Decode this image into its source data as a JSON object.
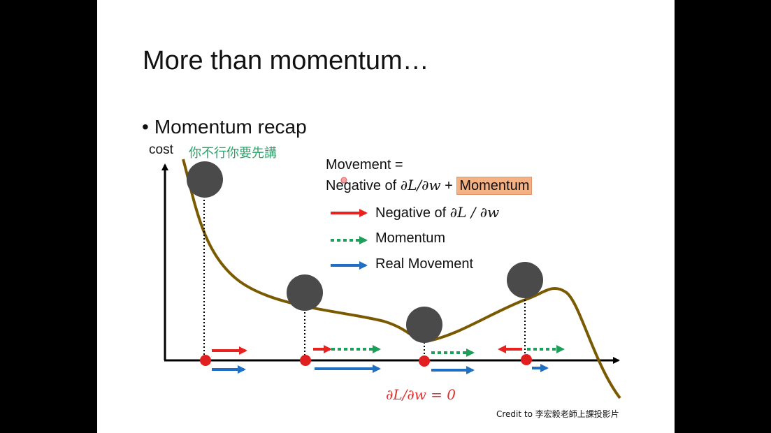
{
  "slide": {
    "title": "More than momentum…",
    "bullet": "Momentum recap",
    "y_axis_label": "cost",
    "subtitle_cn": "你不行你要先講",
    "movement_line1": "Movement =",
    "movement_line2_prefix": "Negative of ",
    "movement_line2_math": "∂L/∂w",
    "movement_line2_plus": " + ",
    "movement_line2_highlight": "Momentum",
    "legend": [
      {
        "label_prefix": "Negative of ",
        "label_math": "∂L / ∂w",
        "color": "#e8231f",
        "style": "solid"
      },
      {
        "label_prefix": "Momentum",
        "label_math": "",
        "color": "#1f9e5a",
        "style": "dotted"
      },
      {
        "label_prefix": "Real Movement",
        "label_math": "",
        "color": "#1f6fc4",
        "style": "solid"
      }
    ],
    "zero_gradient_label": "∂L/∂w = 0",
    "credit": "Credit to 李宏毅老師上課投影片"
  },
  "colors": {
    "curve": "#7a5a00",
    "ball": "#4a4a4a",
    "point": "#e02020",
    "highlight": "#f4b183"
  }
}
